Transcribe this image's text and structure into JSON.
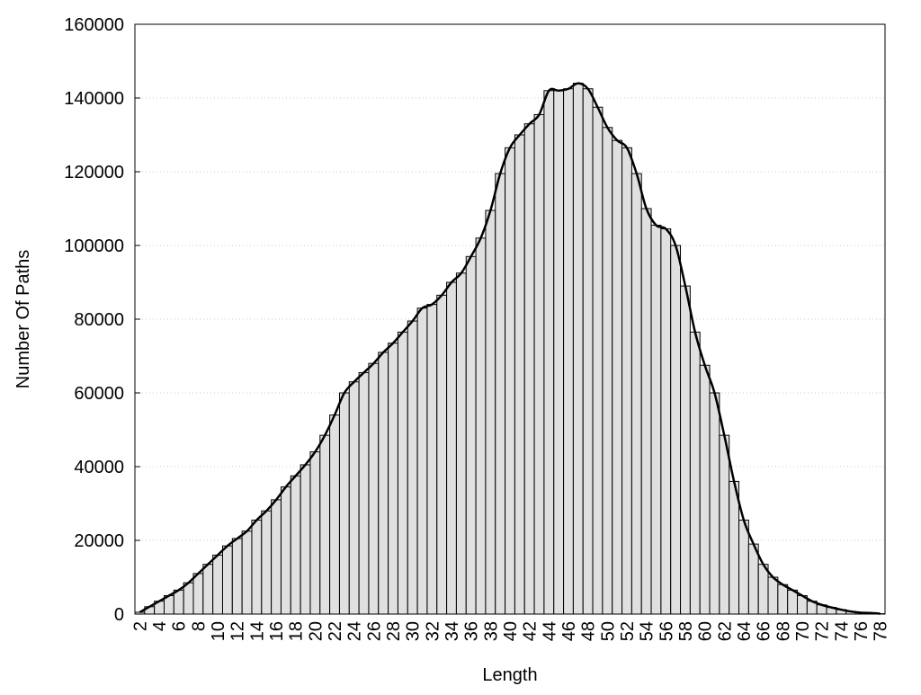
{
  "chart_data": {
    "type": "bar",
    "x_label": "Length",
    "y_label": "Number Of Paths",
    "categories": [
      2,
      null,
      4,
      null,
      6,
      null,
      8,
      null,
      10,
      null,
      12,
      null,
      14,
      null,
      16,
      null,
      18,
      null,
      20,
      null,
      22,
      null,
      24,
      null,
      26,
      null,
      28,
      null,
      30,
      null,
      32,
      null,
      34,
      null,
      36,
      null,
      38,
      null,
      40,
      null,
      42,
      null,
      44,
      null,
      46,
      null,
      48,
      null,
      50,
      null,
      52,
      null,
      54,
      null,
      56,
      null,
      58,
      null,
      60,
      null,
      62,
      null,
      64,
      null,
      66,
      null,
      68,
      null,
      70,
      null,
      72,
      null,
      74,
      null,
      76,
      null,
      78
    ],
    "values": [
      500,
      2000,
      3500,
      5000,
      6500,
      8500,
      11000,
      13500,
      16000,
      18500,
      20500,
      22500,
      25500,
      28000,
      31000,
      34500,
      37500,
      40500,
      44000,
      48500,
      54000,
      60000,
      63000,
      65500,
      68000,
      71000,
      73500,
      76500,
      79500,
      83000,
      84000,
      86500,
      90000,
      92500,
      97000,
      102000,
      109500,
      119500,
      126500,
      130000,
      133000,
      135500,
      142000,
      142000,
      142500,
      144000,
      142500,
      137500,
      132000,
      128500,
      126500,
      119500,
      110000,
      105500,
      104500,
      100000,
      89000,
      76500,
      67500,
      60000,
      48500,
      36000,
      25500,
      19000,
      13500,
      10000,
      8000,
      6500,
      5000,
      3500,
      2500,
      1800,
      1200,
      700,
      400,
      300,
      100
    ],
    "color": "#e0e0e0",
    "smooth_line": true,
    "line_color": "#000000",
    "ylim": [
      0,
      160000
    ],
    "yticks": [
      0,
      20000,
      40000,
      60000,
      80000,
      100000,
      120000,
      140000,
      160000
    ],
    "grid": true
  }
}
